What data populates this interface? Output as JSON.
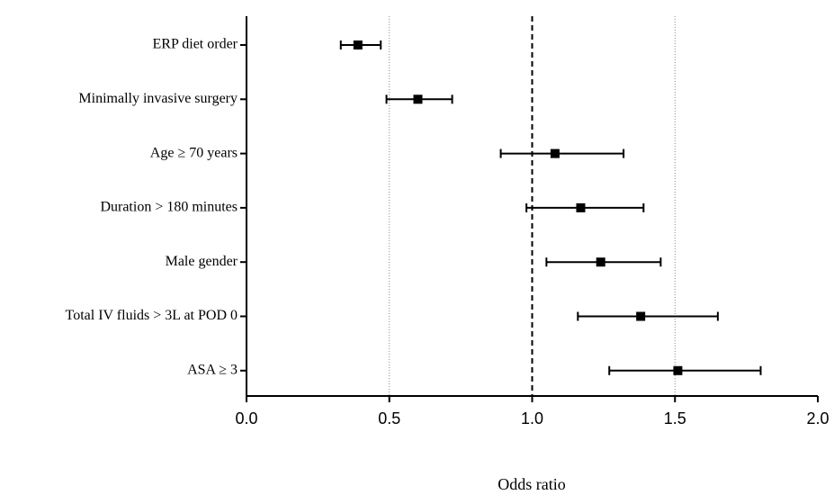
{
  "chart_data": {
    "type": "forest",
    "categories": [
      "ERP diet order",
      "Minimally invasive surgery",
      "Age ≥ 70 years",
      "Duration > 180 minutes",
      "Male gender",
      "Total IV fluids > 3L at POD 0",
      "ASA ≥ 3"
    ],
    "values": [
      0.39,
      0.6,
      1.08,
      1.17,
      1.24,
      1.38,
      1.51
    ],
    "ci_low": [
      0.33,
      0.49,
      0.89,
      0.98,
      1.05,
      1.16,
      1.27
    ],
    "ci_high": [
      0.47,
      0.72,
      1.32,
      1.39,
      1.45,
      1.65,
      1.8
    ],
    "color": "#000000",
    "xlim": [
      0,
      2
    ],
    "xticks": [
      {
        "value": 0,
        "label": "0.0"
      },
      0.5,
      {
        "value": 1,
        "label": "1.0"
      },
      1.5,
      {
        "value": 2,
        "label": "2.0"
      }
    ],
    "reference_line": 1,
    "gridlines": [
      0.5,
      1.5
    ],
    "xlabel": "Odds ratio"
  }
}
